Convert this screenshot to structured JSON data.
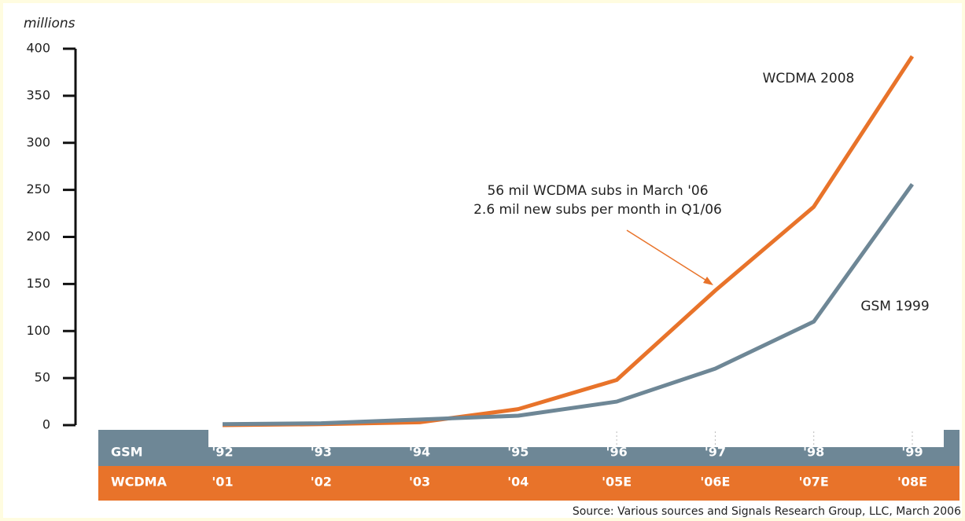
{
  "chart_data": {
    "type": "line",
    "y_axis_label": "millions",
    "row_labels": [
      "GSM",
      "WCDMA"
    ],
    "categories": [
      "'92",
      "'93",
      "'94",
      "'95",
      "'96",
      "'97",
      "'98",
      "'99"
    ],
    "categories2": [
      "'01",
      "'02",
      "'03",
      "'04",
      "'05E",
      "'06E",
      "'07E",
      "'08E"
    ],
    "series": [
      {
        "name": "WCDMA 2008",
        "color": "#e8732a",
        "values": [
          0,
          1,
          3,
          17,
          48,
          143,
          232,
          392
        ]
      },
      {
        "name": "GSM 1999",
        "color": "#6e8796",
        "values": [
          1,
          2,
          6,
          10,
          25,
          60,
          110,
          256
        ]
      }
    ],
    "annotation": [
      "56 mil WCDMA subs in March '06",
      "2.6 mil new subs per month in Q1/06"
    ],
    "source": "Source: Various sources and Signals Research Group, LLC, March 2006",
    "ylim": [
      0,
      400
    ],
    "yticks": [
      0,
      50,
      100,
      150,
      200,
      250,
      300,
      350,
      400
    ],
    "grid": false
  }
}
